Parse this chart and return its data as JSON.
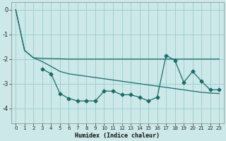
{
  "xlabel": "Humidex (Indice chaleur)",
  "background_color": "#cce8e8",
  "grid_color": "#99cccc",
  "line_color": "#1a6b6b",
  "xlim": [
    -0.5,
    23.5
  ],
  "ylim": [
    -4.6,
    0.3
  ],
  "yticks": [
    0,
    -1,
    -2,
    -3,
    -4
  ],
  "xticks": [
    0,
    1,
    2,
    3,
    4,
    5,
    6,
    7,
    8,
    9,
    10,
    11,
    12,
    13,
    14,
    15,
    16,
    17,
    18,
    19,
    20,
    21,
    22,
    23
  ],
  "line1_x": [
    0,
    1,
    2,
    3,
    4,
    5,
    6,
    7,
    8,
    9,
    10,
    11,
    12,
    13,
    14,
    15,
    16,
    17,
    18,
    19,
    20,
    21,
    22,
    23
  ],
  "line1_y": [
    0.0,
    -1.65,
    -1.95,
    -1.97,
    -1.98,
    -1.99,
    -2.0,
    -2.0,
    -2.0,
    -2.0,
    -2.0,
    -2.0,
    -2.0,
    -2.0,
    -2.0,
    -2.0,
    -2.0,
    -2.0,
    -2.0,
    -2.0,
    -2.0,
    -2.0,
    -2.0,
    -2.0
  ],
  "line2_x": [
    0,
    1,
    2,
    3,
    4,
    5,
    6,
    7,
    8,
    9,
    10,
    11,
    12,
    13,
    14,
    15,
    16,
    17,
    18,
    19,
    20,
    21,
    22,
    23
  ],
  "line2_y": [
    0.0,
    -1.65,
    -1.95,
    -2.1,
    -2.3,
    -2.5,
    -2.6,
    -2.65,
    -2.7,
    -2.75,
    -2.8,
    -2.85,
    -2.9,
    -2.95,
    -3.0,
    -3.05,
    -3.1,
    -3.15,
    -3.2,
    -3.25,
    -3.3,
    -3.35,
    -3.38,
    -3.4
  ],
  "line3_x": [
    3,
    4,
    5,
    6,
    7,
    8,
    9,
    10,
    11,
    12,
    13,
    14,
    15,
    16,
    17,
    18,
    19,
    20,
    21,
    22,
    23
  ],
  "line3_y": [
    -2.4,
    -2.6,
    -3.4,
    -3.6,
    -3.7,
    -3.7,
    -3.7,
    -3.3,
    -3.3,
    -3.45,
    -3.45,
    -3.55,
    -3.7,
    -3.55,
    -1.85,
    -2.05,
    -2.95,
    -2.5,
    -2.9,
    -3.25,
    -3.25
  ],
  "figsize": [
    3.2,
    2.0
  ],
  "dpi": 100
}
